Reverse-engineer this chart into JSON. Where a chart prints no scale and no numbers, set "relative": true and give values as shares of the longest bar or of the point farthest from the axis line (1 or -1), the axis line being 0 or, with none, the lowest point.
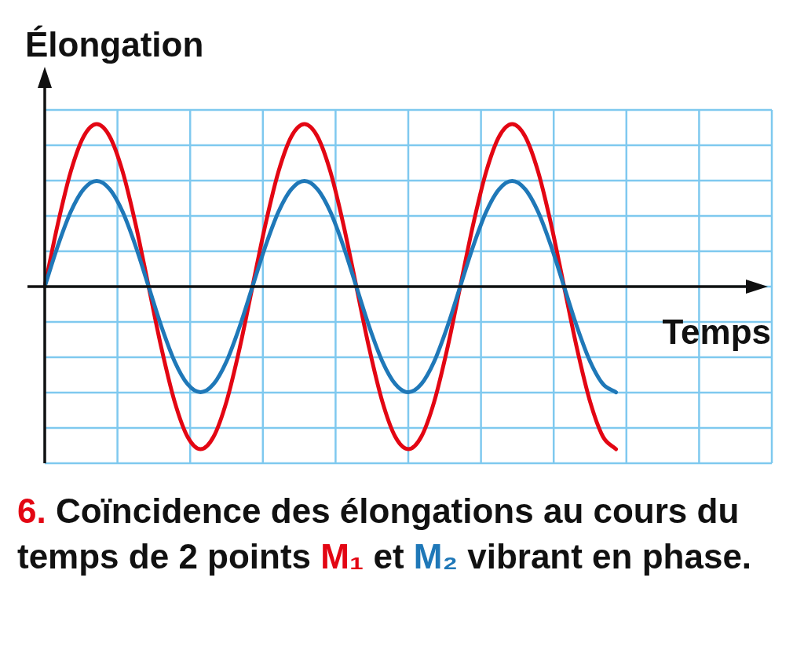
{
  "chart_data": {
    "type": "line",
    "relative": true,
    "ylabel": "Élongation",
    "xlabel": "Temps",
    "grid": true,
    "legend": false,
    "marker": "none",
    "line_style": "solid",
    "categories": [
      null,
      null,
      null,
      null,
      null,
      null,
      null,
      null,
      null,
      null,
      null,
      null,
      null,
      null,
      null,
      null,
      null,
      null,
      null,
      null,
      null,
      null,
      null,
      null,
      null,
      null,
      null,
      null,
      null,
      null,
      null,
      null,
      null,
      null,
      null,
      null,
      null,
      null,
      null,
      null,
      null,
      null,
      null,
      null,
      null,
      null,
      null,
      null,
      null,
      null,
      null,
      null,
      null,
      null,
      null,
      null,
      null
    ],
    "series": [
      {
        "name": "M₁",
        "color": "#e30613",
        "values": [
          0,
          0.383,
          0.707,
          0.924,
          1,
          0.924,
          0.707,
          0.383,
          0,
          -0.383,
          -0.707,
          -0.924,
          -1,
          -0.924,
          -0.707,
          -0.383,
          0,
          0.383,
          0.707,
          0.924,
          1,
          0.924,
          0.707,
          0.383,
          0,
          -0.383,
          -0.707,
          -0.924,
          -1,
          -0.924,
          -0.707,
          -0.383,
          0,
          0.383,
          0.707,
          0.924,
          1,
          0.924,
          0.707,
          0.383,
          0,
          -0.383,
          -0.707,
          -0.924,
          -1,
          null,
          null,
          null,
          null,
          null,
          null,
          null,
          null,
          null,
          null,
          null,
          null
        ]
      },
      {
        "name": "M₂",
        "color": "#1f78b8",
        "values": [
          0,
          0.249,
          0.46,
          0.6,
          0.65,
          0.6,
          0.46,
          0.249,
          0,
          -0.249,
          -0.46,
          -0.6,
          -0.65,
          -0.6,
          -0.46,
          -0.249,
          0,
          0.249,
          0.46,
          0.6,
          0.65,
          0.6,
          0.46,
          0.249,
          0,
          -0.249,
          -0.46,
          -0.6,
          -0.65,
          -0.6,
          -0.46,
          -0.249,
          0,
          0.249,
          0.46,
          0.6,
          0.65,
          0.6,
          0.46,
          0.249,
          0,
          -0.249,
          -0.46,
          -0.6,
          -0.65,
          null,
          null,
          null,
          null,
          null,
          null,
          null,
          null,
          null,
          null,
          null,
          null
        ]
      }
    ],
    "annotations": [
      "6.",
      "Coïncidence des élongations au cours du temps de 2 points",
      "et",
      "vibrant en phase."
    ]
  }
}
